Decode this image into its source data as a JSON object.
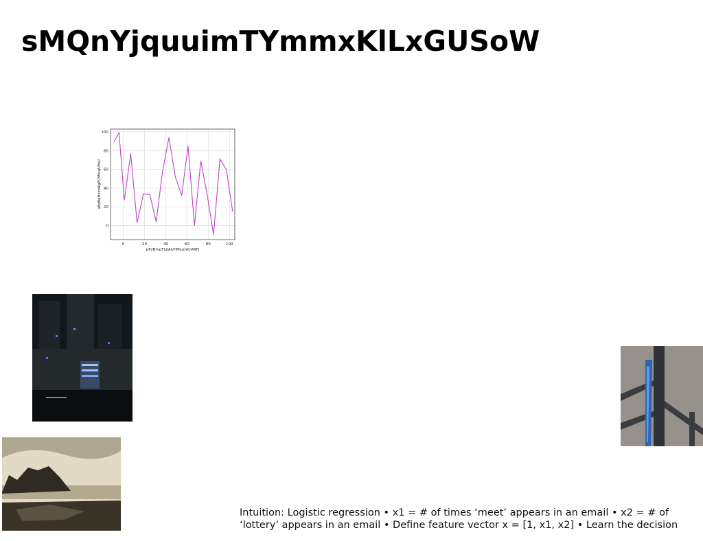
{
  "slide": {
    "title": "sMQnYjquuimTYmmxKlLxGUSoW",
    "caption": "Intuition: Logistic regression • x1 = # of times ‘meet’ appears in an email • x2 = # of ‘lottery’ appears in an email • Define feature vector x = [1, x1, x2] • Learn the decision"
  },
  "images": [
    {
      "name": "city-night-photo"
    },
    {
      "name": "rocky-coast-photo"
    },
    {
      "name": "fence-post-photo"
    }
  ],
  "chart_data": {
    "type": "line",
    "xlabel": "pPzBmpFLkAUHMLohKnMIFj",
    "ylabel": "aBqNqHvlmNgPCBMcqUPeU",
    "xlim": [
      -12,
      105
    ],
    "ylim": [
      -15,
      103
    ],
    "xticks": [
      0,
      20,
      40,
      60,
      80,
      100
    ],
    "yticks": [
      0,
      20,
      40,
      60,
      80,
      100
    ],
    "grid": true,
    "line_color": "#c040c8",
    "x": [
      -9,
      -4,
      1,
      7,
      13,
      19,
      25,
      31,
      37,
      43,
      49,
      55,
      61,
      67,
      73,
      79,
      85,
      91,
      97,
      103
    ],
    "y": [
      89,
      99,
      27,
      77,
      3,
      34,
      33,
      4,
      58,
      94,
      52,
      32,
      85,
      0,
      69,
      33,
      -10,
      71,
      60,
      15
    ]
  }
}
